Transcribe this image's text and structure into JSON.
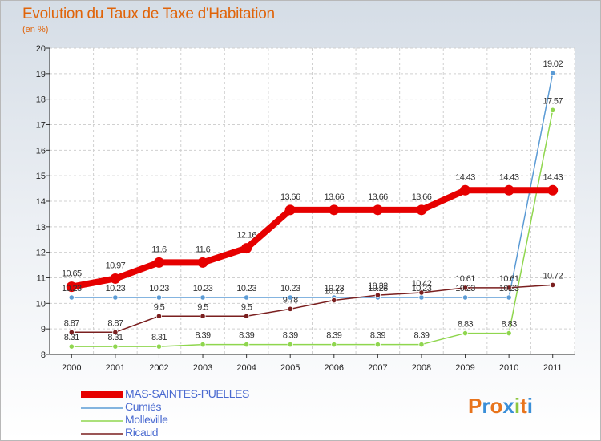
{
  "chart_data": {
    "type": "line",
    "title": "Evolution du Taux de Taxe d'Habitation",
    "subtitle": "(en %)",
    "ylim": [
      8,
      20
    ],
    "yticks": [
      "8",
      "9",
      "10",
      "11",
      "12",
      "13",
      "14",
      "15",
      "16",
      "17",
      "18",
      "19",
      "20"
    ],
    "categories": [
      "2000",
      "2001",
      "2002",
      "2003",
      "2004",
      "2005",
      "2006",
      "2007",
      "2008",
      "2009",
      "2010",
      "2011"
    ],
    "series": [
      {
        "name": "MAS-SAINTES-PUELLES",
        "color": "#e60000",
        "values": [
          10.65,
          10.97,
          11.6,
          11.6,
          12.16,
          13.66,
          13.66,
          13.66,
          13.66,
          14.43,
          14.43,
          14.43
        ],
        "labels": [
          "10.65",
          "10.97",
          "11.6",
          "11.6",
          "12.16",
          "13.66",
          "13.66",
          "13.66",
          "13.66",
          "14.43",
          "14.43",
          "14.43"
        ]
      },
      {
        "name": "Cumiès",
        "color": "#5b9bd5",
        "values": [
          10.23,
          10.23,
          10.23,
          10.23,
          10.23,
          10.23,
          10.23,
          10.23,
          10.23,
          10.23,
          10.23,
          19.02
        ],
        "labels": [
          "10.23",
          "10.23",
          "10.23",
          "10.23",
          "10.23",
          "10.23",
          "10.23",
          "10.23",
          "10.23",
          "10.23",
          "10.23",
          "19.02"
        ]
      },
      {
        "name": "Molleville",
        "color": "#8fd64e",
        "values": [
          8.31,
          8.31,
          8.31,
          8.39,
          8.39,
          8.39,
          8.39,
          8.39,
          8.39,
          8.83,
          8.83,
          17.57
        ],
        "labels": [
          "8.31",
          "8.31",
          "8.31",
          "8.39",
          "8.39",
          "8.39",
          "8.39",
          "8.39",
          "8.39",
          "8.83",
          "8.83",
          "17.57"
        ]
      },
      {
        "name": "Ricaud",
        "color": "#7a1f1f",
        "values": [
          8.87,
          8.87,
          9.5,
          9.5,
          9.5,
          9.78,
          10.12,
          10.32,
          10.42,
          10.61,
          10.61,
          10.72
        ],
        "labels": [
          "8.87",
          "8.87",
          "9.5",
          "9.5",
          "9.5",
          "9.78",
          "10.12",
          "10.32",
          "10.42",
          "10.61",
          "10.61",
          "10.72"
        ]
      }
    ],
    "legend_position": "bottom-left"
  },
  "logo": {
    "letters": [
      "P",
      "r",
      "o",
      "x",
      "i",
      "t",
      "i"
    ],
    "colors": [
      "#e8741c",
      "#3a8fd8",
      "#e8741c",
      "#3a8fd8",
      "#8cc63e",
      "#e8741c",
      "#3a8fd8"
    ]
  }
}
